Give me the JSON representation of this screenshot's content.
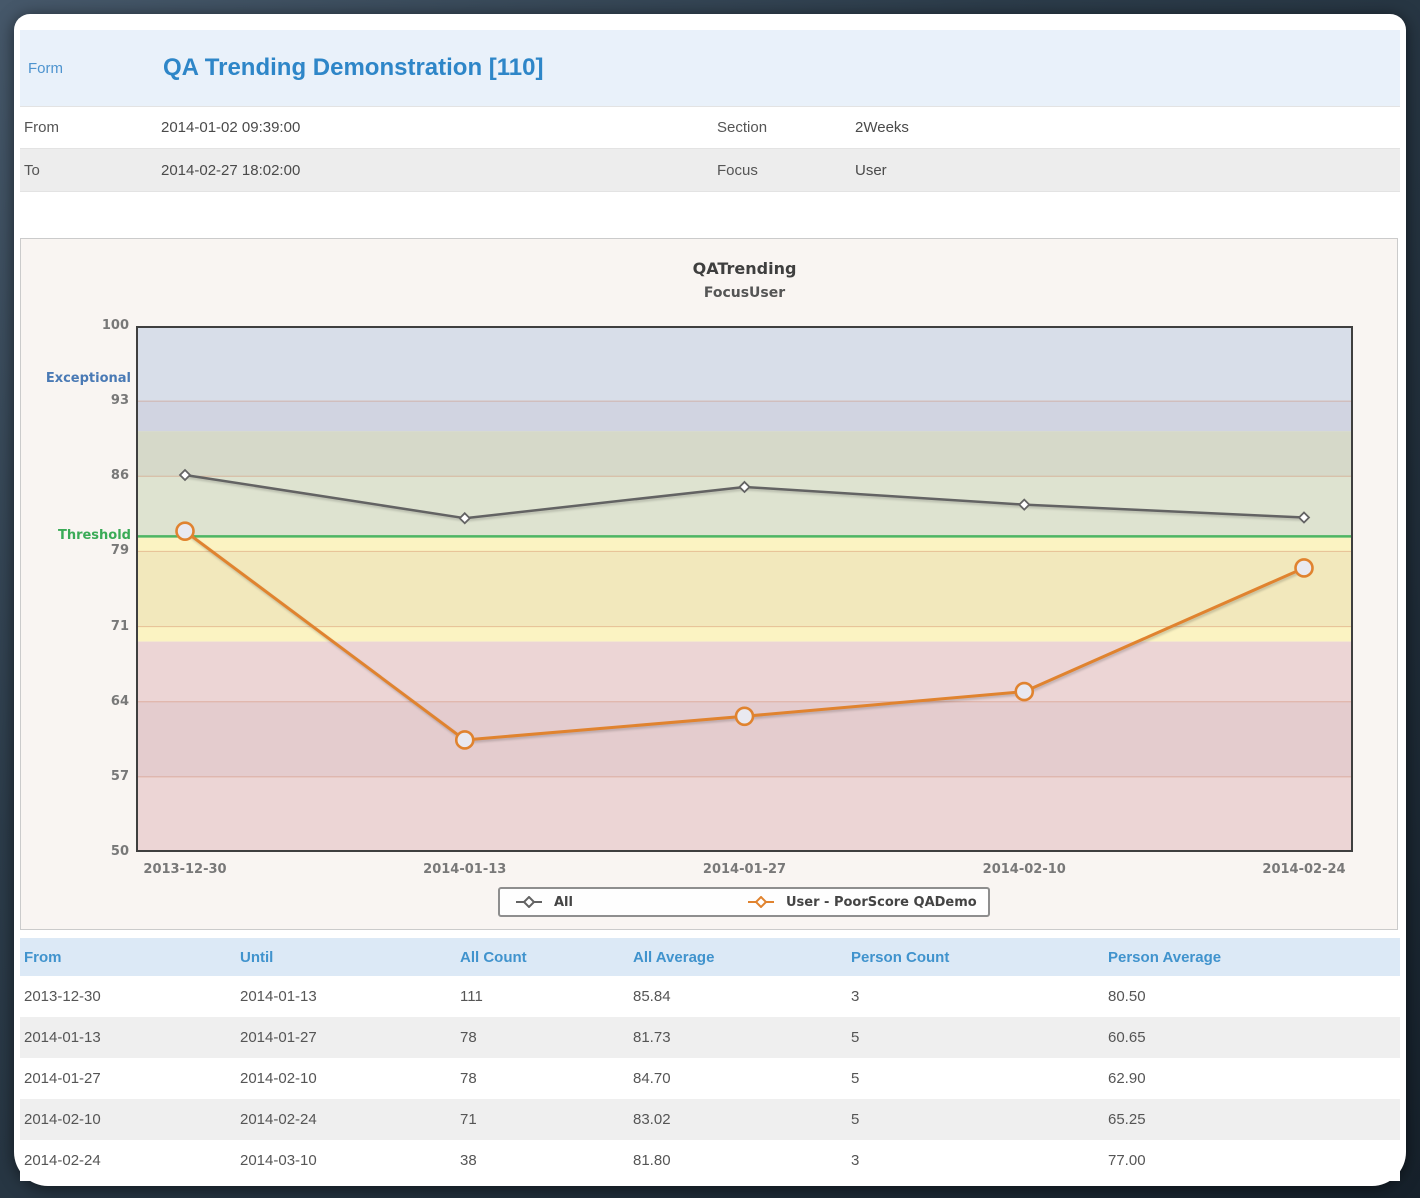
{
  "header": {
    "form_label": "Form",
    "title": "QA Trending Demonstration [110]"
  },
  "fields": [
    {
      "label": "From",
      "value": "2014-01-02 09:39:00"
    },
    {
      "label": "To",
      "value": "2014-02-27 18:02:00"
    },
    {
      "label": "Section",
      "value": "2Weeks"
    },
    {
      "label": "Focus",
      "value": "User"
    }
  ],
  "chart_data": {
    "type": "line",
    "title": "QATrending",
    "subtitle": "FocusUser",
    "x_labels": [
      "2013-12-30",
      "2014-01-13",
      "2014-01-27",
      "2014-02-10",
      "2014-02-24"
    ],
    "ylim": [
      50,
      100
    ],
    "y_ticks": [
      {
        "value": 100,
        "label": "100"
      },
      {
        "value": 92.857,
        "label": "93"
      },
      {
        "value": 85.714,
        "label": "86"
      },
      {
        "value": 78.571,
        "label": "79"
      },
      {
        "value": 71.429,
        "label": "71"
      },
      {
        "value": 64.286,
        "label": "64"
      },
      {
        "value": 57.143,
        "label": "57"
      },
      {
        "value": 50,
        "label": "50"
      }
    ],
    "bands": [
      {
        "from": 90,
        "to": 100,
        "color": "#d8dee9"
      },
      {
        "from": 80,
        "to": 90,
        "color": "#dee3d0"
      },
      {
        "from": 70,
        "to": 80,
        "color": "#fbf3c2"
      },
      {
        "from": 50,
        "to": 70,
        "color": "#ecd5d5"
      }
    ],
    "stripe_overlay_color": "rgba(95,60,95,0.055)",
    "gridline_color": "rgba(205,115,80,0.38)",
    "annotations": [
      {
        "text": "Exceptional",
        "value": 95.0,
        "color": "#4a7ab5"
      },
      {
        "text": "Threshold",
        "value": 80.0,
        "color": "#3aab57"
      }
    ],
    "threshold": {
      "value": 80,
      "color": "#4db563"
    },
    "series": [
      {
        "name": "All",
        "color": "#636363",
        "marker": "diamond",
        "values": [
          85.84,
          81.73,
          84.7,
          83.02,
          81.8
        ]
      },
      {
        "name": "User - PoorScore QADemo",
        "color": "#e0832f",
        "marker": "circle",
        "values": [
          80.5,
          60.65,
          62.9,
          65.25,
          77.0
        ]
      }
    ],
    "legend_position": "bottom",
    "grid": true
  },
  "table": {
    "headers": [
      "From",
      "Until",
      "All Count",
      "All Average",
      "Person Count",
      "Person Average"
    ],
    "rows": [
      [
        "2013-12-30",
        "2014-01-13",
        "111",
        "85.84",
        "3",
        "80.50"
      ],
      [
        "2014-01-13",
        "2014-01-27",
        "78",
        "81.73",
        "5",
        "60.65"
      ],
      [
        "2014-01-27",
        "2014-02-10",
        "78",
        "84.70",
        "5",
        "62.90"
      ],
      [
        "2014-02-10",
        "2014-02-24",
        "71",
        "83.02",
        "5",
        "65.25"
      ],
      [
        "2014-02-24",
        "2014-03-10",
        "38",
        "81.80",
        "3",
        "77.00"
      ]
    ]
  },
  "colors": {
    "accent_blue": "#2e86c8",
    "header_band_bg": "#e9f1fa",
    "table_header_bg": "#dce9f6",
    "table_header_text": "#4093cd"
  }
}
